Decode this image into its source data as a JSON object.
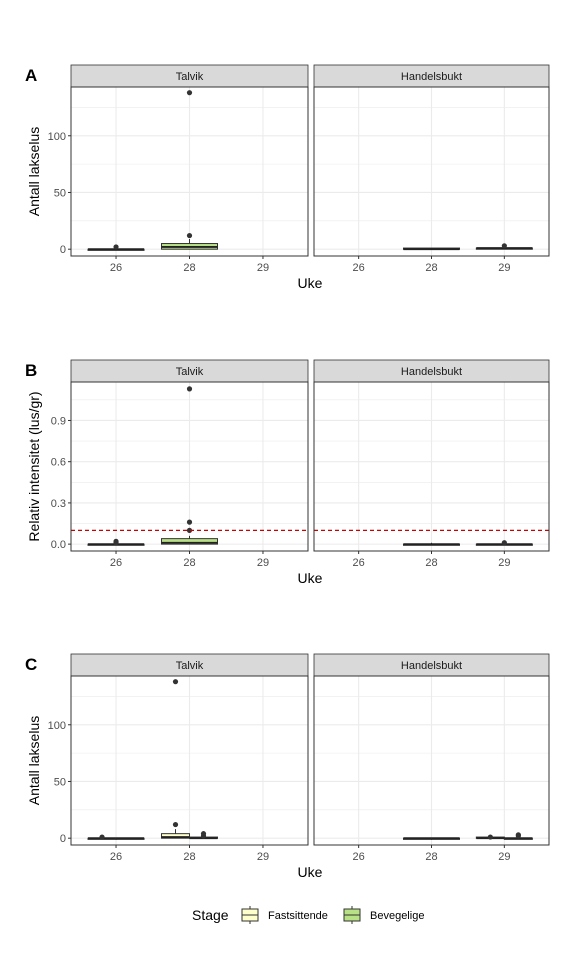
{
  "legend": {
    "title": "Stage",
    "entries": [
      {
        "name": "Fastsittende",
        "fill": "#ffffcc"
      },
      {
        "name": "Bevegelige",
        "fill": "#b8e186"
      }
    ]
  },
  "colors": {
    "strip_bg": "#d9d9d9",
    "grid": "#ebebeb",
    "panel_border": "#333333",
    "threshold": "#cc0000"
  },
  "chart_data": [
    {
      "type": "boxplot",
      "tag": "A",
      "xlabel": "Uke",
      "ylabel": "Antall lakselus",
      "ylim": [
        -6,
        143
      ],
      "yticks": [
        0,
        50,
        100
      ],
      "yticklabels": [
        "0",
        "50",
        "100"
      ],
      "grid": true,
      "facets": [
        "Talvik",
        "Handelsbukt"
      ],
      "categories": [
        "26",
        "28",
        "29"
      ],
      "boxes": [
        {
          "facet": "Talvik",
          "x": "26",
          "stage": "Bevegelige",
          "q1": 0,
          "median": 0,
          "q3": 0,
          "whisker_low": 0,
          "whisker_high": 0,
          "outliers": [
            2
          ]
        },
        {
          "facet": "Talvik",
          "x": "28",
          "stage": "Bevegelige",
          "q1": 0,
          "median": 2,
          "q3": 5,
          "whisker_low": 0,
          "whisker_high": 9,
          "outliers": [
            12,
            138
          ]
        },
        {
          "facet": "Handelsbukt",
          "x": "28",
          "stage": "Bevegelige",
          "q1": 0,
          "median": 0,
          "q3": 1,
          "whisker_low": 0,
          "whisker_high": 1,
          "outliers": []
        },
        {
          "facet": "Handelsbukt",
          "x": "29",
          "stage": "Bevegelige",
          "q1": 0,
          "median": 1,
          "q3": 1,
          "whisker_low": 0,
          "whisker_high": 2,
          "outliers": [
            3
          ]
        }
      ]
    },
    {
      "type": "boxplot",
      "tag": "B",
      "xlabel": "Uke",
      "ylabel": "Relativ intensitet (lus/gr)",
      "ylim": [
        -0.05,
        1.18
      ],
      "yticks": [
        0,
        0.3,
        0.6,
        0.9
      ],
      "yticklabels": [
        "0.0",
        "0.3",
        "0.6",
        "0.9"
      ],
      "grid": true,
      "hline": 0.1,
      "facets": [
        "Talvik",
        "Handelsbukt"
      ],
      "categories": [
        "26",
        "28",
        "29"
      ],
      "boxes": [
        {
          "facet": "Talvik",
          "x": "26",
          "stage": "Bevegelige",
          "q1": 0,
          "median": 0,
          "q3": 0,
          "whisker_low": 0,
          "whisker_high": 0,
          "outliers": [
            0.01,
            0.02
          ]
        },
        {
          "facet": "Talvik",
          "x": "28",
          "stage": "Bevegelige",
          "q1": 0,
          "median": 0.01,
          "q3": 0.04,
          "whisker_low": 0,
          "whisker_high": 0.06,
          "outliers": [
            0.1,
            0.16,
            1.13
          ]
        },
        {
          "facet": "Handelsbukt",
          "x": "28",
          "stage": "Bevegelige",
          "q1": 0,
          "median": 0,
          "q3": 0,
          "whisker_low": 0,
          "whisker_high": 0.01,
          "outliers": []
        },
        {
          "facet": "Handelsbukt",
          "x": "29",
          "stage": "Bevegelige",
          "q1": 0,
          "median": 0,
          "q3": 0,
          "whisker_low": 0,
          "whisker_high": 0.01,
          "outliers": [
            0.01
          ]
        }
      ]
    },
    {
      "type": "boxplot",
      "tag": "C",
      "xlabel": "Uke",
      "ylabel": "Antall lakselus",
      "ylim": [
        -6,
        143
      ],
      "yticks": [
        0,
        50,
        100
      ],
      "yticklabels": [
        "0",
        "50",
        "100"
      ],
      "grid": true,
      "dodge": true,
      "facets": [
        "Talvik",
        "Handelsbukt"
      ],
      "categories": [
        "26",
        "28",
        "29"
      ],
      "boxes": [
        {
          "facet": "Talvik",
          "x": "26",
          "stage": "Fastsittende",
          "q1": 0,
          "median": 0,
          "q3": 0,
          "whisker_low": 0,
          "whisker_high": 0,
          "outliers": [
            1
          ]
        },
        {
          "facet": "Talvik",
          "x": "26",
          "stage": "Bevegelige",
          "q1": 0,
          "median": 0,
          "q3": 0,
          "whisker_low": 0,
          "whisker_high": 0,
          "outliers": []
        },
        {
          "facet": "Talvik",
          "x": "28",
          "stage": "Fastsittende",
          "q1": 0,
          "median": 1,
          "q3": 4,
          "whisker_low": 0,
          "whisker_high": 8,
          "outliers": [
            12,
            138
          ]
        },
        {
          "facet": "Talvik",
          "x": "28",
          "stage": "Bevegelige",
          "q1": 0,
          "median": 0,
          "q3": 1,
          "whisker_low": 0,
          "whisker_high": 1,
          "outliers": [
            2,
            4
          ]
        },
        {
          "facet": "Handelsbukt",
          "x": "28",
          "stage": "Fastsittende",
          "q1": 0,
          "median": 0,
          "q3": 0,
          "whisker_low": 0,
          "whisker_high": 0,
          "outliers": []
        },
        {
          "facet": "Handelsbukt",
          "x": "28",
          "stage": "Bevegelige",
          "q1": 0,
          "median": 0,
          "q3": 0,
          "whisker_low": 0,
          "whisker_high": 0,
          "outliers": []
        },
        {
          "facet": "Handelsbukt",
          "x": "29",
          "stage": "Fastsittende",
          "q1": 0,
          "median": 0,
          "q3": 1,
          "whisker_low": 0,
          "whisker_high": 1,
          "outliers": [
            1
          ]
        },
        {
          "facet": "Handelsbukt",
          "x": "29",
          "stage": "Bevegelige",
          "q1": 0,
          "median": 0,
          "q3": 0,
          "whisker_low": 0,
          "whisker_high": 1,
          "outliers": [
            2,
            3
          ]
        }
      ]
    }
  ]
}
